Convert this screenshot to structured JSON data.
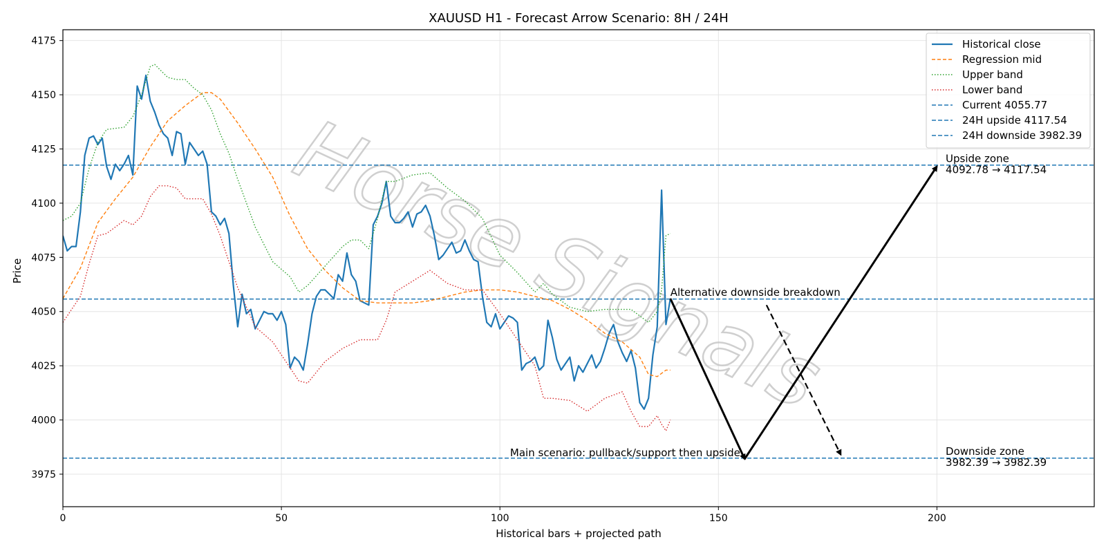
{
  "chart_data": {
    "type": "line",
    "title": "XAUUSD H1 - Forecast Arrow Scenario: 8H / 24H",
    "xlabel": "Historical bars + projected path",
    "ylabel": "Price",
    "xlim": [
      0,
      236
    ],
    "ylim": [
      3960,
      4180
    ],
    "x_ticks": [
      0,
      50,
      100,
      150,
      200
    ],
    "y_ticks": [
      3975,
      4000,
      4025,
      4050,
      4075,
      4100,
      4125,
      4150,
      4175
    ],
    "grid": true,
    "legend_position": "top-right",
    "watermark": "Horse Signals",
    "series": [
      {
        "name": "Historical close",
        "style": "solid",
        "color": "#1f77b4",
        "x": [
          0,
          1,
          2,
          3,
          4,
          5,
          6,
          7,
          8,
          9,
          10,
          11,
          12,
          13,
          14,
          15,
          16,
          17,
          18,
          19,
          20,
          21,
          22,
          23,
          24,
          25,
          26,
          27,
          28,
          29,
          30,
          31,
          32,
          33,
          34,
          35,
          36,
          37,
          38,
          39,
          40,
          41,
          42,
          43,
          44,
          45,
          46,
          47,
          48,
          49,
          50,
          51,
          52,
          53,
          54,
          55,
          56,
          57,
          58,
          59,
          60,
          61,
          62,
          63,
          64,
          65,
          66,
          67,
          68,
          69,
          70,
          71,
          72,
          73,
          74,
          75,
          76,
          77,
          78,
          79,
          80,
          81,
          82,
          83,
          84,
          85,
          86,
          87,
          88,
          89,
          90,
          91,
          92,
          93,
          94,
          95,
          96,
          97,
          98,
          99,
          100,
          101,
          102,
          103,
          104,
          105,
          106,
          107,
          108,
          109,
          110,
          111,
          112,
          113,
          114,
          115,
          116,
          117,
          118,
          119,
          120,
          121,
          122,
          123,
          124,
          125,
          126,
          127,
          128,
          129,
          130,
          131,
          132,
          133,
          134,
          135,
          136,
          137,
          138,
          139
        ],
        "values": [
          4085,
          4078,
          4080,
          4080,
          4096,
          4122,
          4130,
          4131,
          4127,
          4130,
          4117,
          4111,
          4118,
          4115,
          4118,
          4122,
          4113,
          4154,
          4148,
          4159,
          4147,
          4142,
          4136,
          4132,
          4130,
          4122,
          4133,
          4132,
          4118,
          4128,
          4125,
          4122,
          4124,
          4118,
          4096,
          4094,
          4090,
          4093,
          4086,
          4062,
          4043,
          4058,
          4049,
          4051,
          4042,
          4046,
          4050,
          4049,
          4049,
          4046,
          4050,
          4044,
          4024,
          4029,
          4027,
          4023,
          4035,
          4049,
          4057,
          4060,
          4060,
          4058,
          4056,
          4067,
          4064,
          4077,
          4067,
          4064,
          4055,
          4054,
          4053,
          4090,
          4094,
          4100,
          4110,
          4094,
          4091,
          4091,
          4093,
          4096,
          4089,
          4095,
          4096,
          4099,
          4094,
          4085,
          4074,
          4076,
          4079,
          4082,
          4077,
          4078,
          4083,
          4078,
          4074,
          4073,
          4057,
          4045,
          4043,
          4049,
          4042,
          4045,
          4048,
          4047,
          4045,
          4023,
          4026,
          4027,
          4029,
          4023,
          4025,
          4046,
          4038,
          4028,
          4023,
          4026,
          4029,
          4018,
          4025,
          4022,
          4026,
          4030,
          4024,
          4027,
          4033,
          4040,
          4044,
          4036,
          4031,
          4027,
          4032,
          4024,
          4008,
          4005,
          4010,
          4030,
          4043,
          4106,
          4044,
          4056
        ]
      },
      {
        "name": "Regression mid",
        "style": "dashed",
        "color": "#ff7f0e",
        "x": [
          0,
          4,
          8,
          12,
          16,
          20,
          24,
          28,
          32,
          34,
          36,
          40,
          44,
          48,
          52,
          56,
          60,
          64,
          68,
          72,
          76,
          80,
          84,
          88,
          92,
          96,
          100,
          104,
          108,
          112,
          116,
          120,
          124,
          128,
          132,
          134,
          136,
          138,
          139
        ],
        "values": [
          4056,
          4070,
          4091,
          4102,
          4112,
          4126,
          4138,
          4145,
          4151,
          4151,
          4148,
          4137,
          4125,
          4112,
          4094,
          4079,
          4069,
          4061,
          4055,
          4054,
          4054,
          4054,
          4055,
          4057,
          4059,
          4060,
          4060,
          4059,
          4057,
          4055,
          4051,
          4046,
          4040,
          4036,
          4029,
          4021,
          4020,
          4023,
          4023
        ]
      },
      {
        "name": "Upper band",
        "style": "dotted",
        "color": "#2ca02c",
        "x": [
          0,
          2,
          4,
          6,
          8,
          10,
          14,
          16,
          18,
          20,
          21,
          22,
          24,
          26,
          28,
          30,
          32,
          34,
          36,
          38,
          40,
          44,
          48,
          52,
          54,
          56,
          60,
          64,
          66,
          68,
          70,
          72,
          74,
          76,
          80,
          84,
          88,
          92,
          96,
          100,
          104,
          108,
          110,
          112,
          116,
          120,
          124,
          128,
          130,
          132,
          134,
          136,
          137,
          138,
          139
        ],
        "values": [
          4092,
          4094,
          4100,
          4116,
          4128,
          4134,
          4135,
          4140,
          4150,
          4163,
          4164,
          4162,
          4158,
          4157,
          4157,
          4153,
          4150,
          4143,
          4132,
          4123,
          4111,
          4089,
          4073,
          4066,
          4059,
          4062,
          4071,
          4080,
          4083,
          4083,
          4079,
          4093,
          4110,
          4110,
          4113,
          4114,
          4107,
          4101,
          4093,
          4076,
          4068,
          4059,
          4063,
          4058,
          4052,
          4050,
          4051,
          4051,
          4051,
          4048,
          4045,
          4050,
          4060,
          4085,
          4086
        ]
      },
      {
        "name": "Lower band",
        "style": "dotted",
        "color": "#d62728",
        "x": [
          0,
          2,
          4,
          6,
          8,
          10,
          12,
          14,
          16,
          18,
          20,
          22,
          24,
          26,
          28,
          30,
          32,
          34,
          36,
          38,
          40,
          44,
          48,
          52,
          54,
          56,
          60,
          64,
          68,
          70,
          72,
          74,
          76,
          80,
          84,
          88,
          92,
          96,
          100,
          104,
          108,
          110,
          112,
          116,
          120,
          124,
          128,
          130,
          132,
          134,
          136,
          137,
          138,
          139
        ],
        "values": [
          4045,
          4051,
          4057,
          4072,
          4085,
          4086,
          4089,
          4092,
          4090,
          4094,
          4103,
          4108,
          4108,
          4107,
          4102,
          4102,
          4102,
          4095,
          4085,
          4073,
          4061,
          4043,
          4036,
          4024,
          4018,
          4017,
          4027,
          4033,
          4037,
          4037,
          4037,
          4046,
          4059,
          4064,
          4069,
          4063,
          4060,
          4060,
          4049,
          4037,
          4025,
          4010,
          4010,
          4009,
          4004,
          4010,
          4013,
          4004,
          3997,
          3997,
          4002,
          3998,
          3995,
          4000
        ]
      }
    ],
    "reference_lines": [
      {
        "name": "Current 4055.77",
        "value": 4055.77,
        "color": "#1f77b4",
        "style": "dashed"
      },
      {
        "name": "24H upside 4117.54",
        "value": 4117.54,
        "color": "#1f77b4",
        "style": "dashed"
      },
      {
        "name": "24H downside 3982.39",
        "value": 3982.39,
        "color": "#1f77b4",
        "style": "dashed"
      }
    ],
    "arrows": [
      {
        "from": [
          139,
          4056
        ],
        "to": [
          156,
          3982
        ],
        "style": "solid"
      },
      {
        "from": [
          156,
          3982
        ],
        "to": [
          200,
          4117
        ],
        "style": "solid"
      },
      {
        "from": [
          161,
          4053
        ],
        "to": [
          178,
          3984
        ],
        "style": "dashed"
      }
    ],
    "annotations": [
      {
        "text": "Alternative downside breakdown",
        "x": 139,
        "y": 4056,
        "anchor": "start"
      },
      {
        "text": "Main scenario: pullback/support then upside",
        "x": 155,
        "y": 3982,
        "anchor": "end"
      },
      {
        "text": "Upside zone",
        "x": 202,
        "y": 4118,
        "anchor": "start",
        "line": 1
      },
      {
        "text": "4092.78 → 4117.54",
        "x": 202,
        "y": 4118,
        "anchor": "start",
        "line": 2
      },
      {
        "text": "Downside zone",
        "x": 202,
        "y": 3983,
        "anchor": "start",
        "line": 1
      },
      {
        "text": "3982.39 → 3982.39",
        "x": 202,
        "y": 3983,
        "anchor": "start",
        "line": 2
      }
    ]
  }
}
